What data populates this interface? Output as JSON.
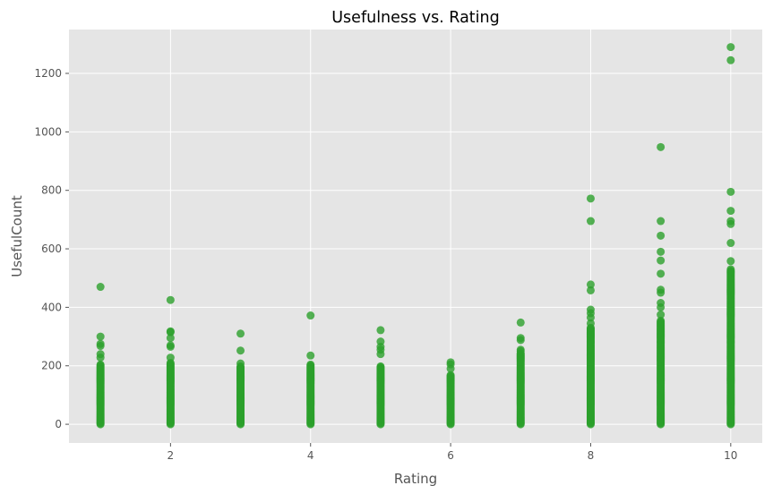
{
  "chart_data": {
    "type": "scatter",
    "title": "Usefulness vs. Rating",
    "xlabel": "Rating",
    "ylabel": "UsefulCount",
    "xlim": [
      0.55,
      10.45
    ],
    "ylim": [
      -64,
      1350
    ],
    "xticks": [
      2,
      4,
      6,
      8,
      10
    ],
    "yticks": [
      0,
      200,
      400,
      600,
      800,
      1000,
      1200
    ],
    "grid": true,
    "background": "#e5e5e5",
    "grid_color": "#ffffff",
    "marker_color": "#2ca02c",
    "marker_opacity": 0.8,
    "columns": [
      {
        "x": 1,
        "max_dense": 205
      },
      {
        "x": 2,
        "max_dense": 210
      },
      {
        "x": 3,
        "max_dense": 200
      },
      {
        "x": 4,
        "max_dense": 205
      },
      {
        "x": 5,
        "max_dense": 200
      },
      {
        "x": 6,
        "max_dense": 170
      },
      {
        "x": 7,
        "max_dense": 245
      },
      {
        "x": 8,
        "max_dense": 330
      },
      {
        "x": 9,
        "max_dense": 355
      },
      {
        "x": 10,
        "max_dense": 525
      }
    ],
    "outliers": [
      {
        "x": 1,
        "y": 470
      },
      {
        "x": 1,
        "y": 300
      },
      {
        "x": 1,
        "y": 275
      },
      {
        "x": 1,
        "y": 268
      },
      {
        "x": 1,
        "y": 240
      },
      {
        "x": 1,
        "y": 228
      },
      {
        "x": 2,
        "y": 425
      },
      {
        "x": 2,
        "y": 318
      },
      {
        "x": 2,
        "y": 315
      },
      {
        "x": 2,
        "y": 295
      },
      {
        "x": 2,
        "y": 270
      },
      {
        "x": 2,
        "y": 265
      },
      {
        "x": 2,
        "y": 228
      },
      {
        "x": 3,
        "y": 310
      },
      {
        "x": 3,
        "y": 252
      },
      {
        "x": 3,
        "y": 208
      },
      {
        "x": 4,
        "y": 372
      },
      {
        "x": 4,
        "y": 235
      },
      {
        "x": 5,
        "y": 322
      },
      {
        "x": 5,
        "y": 283
      },
      {
        "x": 5,
        "y": 265
      },
      {
        "x": 5,
        "y": 255
      },
      {
        "x": 5,
        "y": 240
      },
      {
        "x": 6,
        "y": 212
      },
      {
        "x": 6,
        "y": 205
      },
      {
        "x": 6,
        "y": 190
      },
      {
        "x": 7,
        "y": 348
      },
      {
        "x": 7,
        "y": 295
      },
      {
        "x": 7,
        "y": 288
      },
      {
        "x": 7,
        "y": 255
      },
      {
        "x": 7,
        "y": 250
      },
      {
        "x": 8,
        "y": 772
      },
      {
        "x": 8,
        "y": 695
      },
      {
        "x": 8,
        "y": 478
      },
      {
        "x": 8,
        "y": 458
      },
      {
        "x": 8,
        "y": 392
      },
      {
        "x": 8,
        "y": 380
      },
      {
        "x": 8,
        "y": 365
      },
      {
        "x": 8,
        "y": 345
      },
      {
        "x": 9,
        "y": 948
      },
      {
        "x": 9,
        "y": 695
      },
      {
        "x": 9,
        "y": 645
      },
      {
        "x": 9,
        "y": 590
      },
      {
        "x": 9,
        "y": 560
      },
      {
        "x": 9,
        "y": 515
      },
      {
        "x": 9,
        "y": 460
      },
      {
        "x": 9,
        "y": 450
      },
      {
        "x": 9,
        "y": 415
      },
      {
        "x": 9,
        "y": 400
      },
      {
        "x": 9,
        "y": 375
      },
      {
        "x": 10,
        "y": 1290
      },
      {
        "x": 10,
        "y": 1245
      },
      {
        "x": 10,
        "y": 795
      },
      {
        "x": 10,
        "y": 730
      },
      {
        "x": 10,
        "y": 695
      },
      {
        "x": 10,
        "y": 685
      },
      {
        "x": 10,
        "y": 620
      },
      {
        "x": 10,
        "y": 558
      },
      {
        "x": 10,
        "y": 530
      }
    ]
  }
}
